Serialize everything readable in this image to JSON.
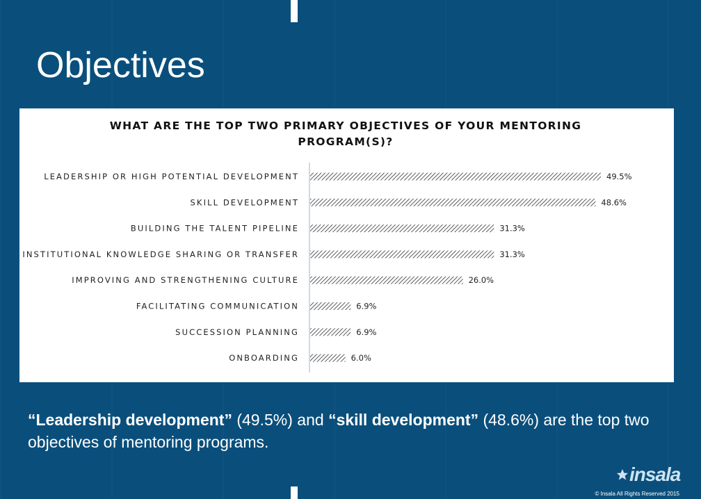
{
  "slide": {
    "title": "Objectives",
    "summary": {
      "part1": "“Leadership development”",
      "part2": " (49.5%) and ",
      "part3": "“skill development”",
      "part4": " (48.6%) are the top two objectives of mentoring programs."
    },
    "logo": "insala",
    "copyright": "© Insala All Rights Reserved 2015"
  },
  "chart_data": {
    "type": "bar",
    "orientation": "horizontal",
    "title_lines": [
      "WHAT ARE THE TOP TWO PRIMARY OBJECTIVES OF YOUR MENTORING",
      "PROGRAM(S)?"
    ],
    "categories": [
      "LEADERSHIP OR HIGH POTENTIAL DEVELOPMENT",
      "SKILL DEVELOPMENT",
      "BUILDING THE TALENT PIPELINE",
      "INSTITUTIONAL KNOWLEDGE SHARING OR TRANSFER",
      "IMPROVING AND STRENGTHENING CULTURE",
      "FACILITATING COMMUNICATION",
      "SUCCESSION PLANNING",
      "ONBOARDING"
    ],
    "values": [
      49.5,
      48.6,
      31.3,
      31.3,
      26.0,
      6.9,
      6.9,
      6.0
    ],
    "value_labels": [
      "49.5%",
      "48.6%",
      "31.3%",
      "31.3%",
      "26.0%",
      "6.9%",
      "6.9%",
      "6.0%"
    ],
    "fill_pattern": "diagonal-hatch",
    "bar_color": "#333333",
    "grid": false
  }
}
